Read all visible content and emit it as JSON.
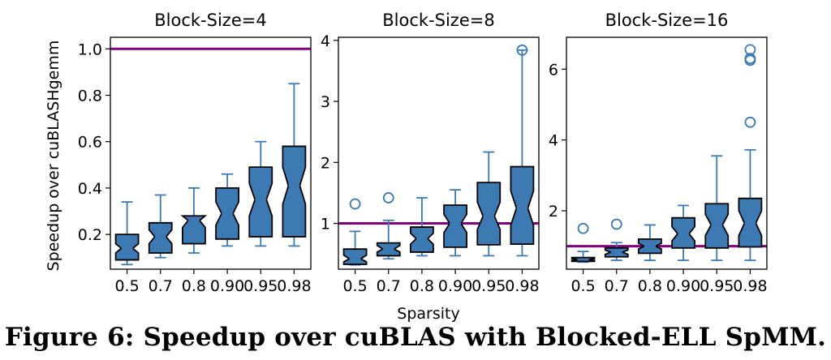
{
  "figure": {
    "caption": "Figure 6: Speedup over cuBLAS with Blocked-ELL SpMM.",
    "ylabel": "Speedup over cuBLASHgemm",
    "xlabel": "Sparsity"
  },
  "colors": {
    "box_fill": "#3d79b3",
    "whisker": "#3d79b3",
    "outlier": "#3d79b3",
    "reference_line": "#800080",
    "box_edge": "#000000"
  },
  "chart_data": [
    {
      "type": "boxplot",
      "notched": true,
      "title": "Block-Size=4",
      "ylim": [
        0.05,
        1.05
      ],
      "yticks": [
        0.2,
        0.4,
        0.6,
        0.8,
        1.0
      ],
      "ytick_labels": [
        "0.2",
        "0.4",
        "0.6",
        "0.8",
        "1.0"
      ],
      "categories": [
        "0.5",
        "0.7",
        "0.8",
        "0.90",
        "0.95",
        "0.98"
      ],
      "reference_line": 1.0,
      "boxes": [
        {
          "min": 0.07,
          "q1": 0.09,
          "median": 0.14,
          "q3": 0.2,
          "max": 0.34,
          "notch_low": 0.12,
          "notch_high": 0.16,
          "outliers": []
        },
        {
          "min": 0.1,
          "q1": 0.12,
          "median": 0.19,
          "q3": 0.25,
          "max": 0.37,
          "notch_low": 0.16,
          "notch_high": 0.22,
          "outliers": []
        },
        {
          "min": 0.12,
          "q1": 0.16,
          "median": 0.26,
          "q3": 0.28,
          "max": 0.4,
          "notch_low": 0.23,
          "notch_high": 0.285,
          "outliers": []
        },
        {
          "min": 0.15,
          "q1": 0.18,
          "median": 0.29,
          "q3": 0.4,
          "max": 0.46,
          "notch_low": 0.24,
          "notch_high": 0.34,
          "outliers": []
        },
        {
          "min": 0.15,
          "q1": 0.19,
          "median": 0.35,
          "q3": 0.49,
          "max": 0.6,
          "notch_low": 0.28,
          "notch_high": 0.42,
          "outliers": []
        },
        {
          "min": 0.15,
          "q1": 0.19,
          "median": 0.41,
          "q3": 0.58,
          "max": 0.85,
          "notch_low": 0.33,
          "notch_high": 0.49,
          "outliers": []
        }
      ]
    },
    {
      "type": "boxplot",
      "notched": true,
      "title": "Block-Size=8",
      "ylim": [
        0.25,
        4.05
      ],
      "yticks": [
        1,
        2,
        3,
        4
      ],
      "ytick_labels": [
        "1",
        "2",
        "3",
        "4"
      ],
      "categories": [
        "0.5",
        "0.7",
        "0.8",
        "0.90",
        "0.95",
        "0.98"
      ],
      "reference_line": 1.0,
      "boxes": [
        {
          "min": 0.32,
          "q1": 0.33,
          "median": 0.42,
          "q3": 0.58,
          "max": 0.87,
          "notch_low": 0.37,
          "notch_high": 0.48,
          "outliers": [
            1.32
          ]
        },
        {
          "min": 0.42,
          "q1": 0.47,
          "median": 0.58,
          "q3": 0.68,
          "max": 1.05,
          "notch_low": 0.53,
          "notch_high": 0.64,
          "outliers": [
            1.42
          ]
        },
        {
          "min": 0.47,
          "q1": 0.53,
          "median": 0.75,
          "q3": 0.94,
          "max": 1.42,
          "notch_low": 0.66,
          "notch_high": 0.84,
          "outliers": []
        },
        {
          "min": 0.47,
          "q1": 0.61,
          "median": 1.0,
          "q3": 1.3,
          "max": 1.55,
          "notch_low": 0.85,
          "notch_high": 1.15,
          "outliers": []
        },
        {
          "min": 0.47,
          "q1": 0.65,
          "median": 1.12,
          "q3": 1.67,
          "max": 2.17,
          "notch_low": 0.9,
          "notch_high": 1.35,
          "outliers": []
        },
        {
          "min": 0.47,
          "q1": 0.66,
          "median": 1.25,
          "q3": 1.93,
          "max": 3.84,
          "notch_low": 0.97,
          "notch_high": 1.53,
          "outliers": [
            3.84
          ]
        }
      ]
    },
    {
      "type": "boxplot",
      "notched": true,
      "title": "Block-Size=16",
      "ylim": [
        0.35,
        6.9
      ],
      "yticks": [
        2,
        4,
        6
      ],
      "ytick_labels": [
        "2",
        "4",
        "6"
      ],
      "categories": [
        "0.5",
        "0.7",
        "0.8",
        "0.90",
        "0.95",
        "0.98"
      ],
      "reference_line": 1.0,
      "boxes": [
        {
          "min": 0.55,
          "q1": 0.57,
          "median": 0.62,
          "q3": 0.68,
          "max": 0.85,
          "notch_low": 0.6,
          "notch_high": 0.65,
          "outliers": [
            1.5
          ]
        },
        {
          "min": 0.6,
          "q1": 0.7,
          "median": 0.83,
          "q3": 0.95,
          "max": 1.1,
          "notch_low": 0.77,
          "notch_high": 0.89,
          "outliers": [
            1.62
          ]
        },
        {
          "min": 0.6,
          "q1": 0.8,
          "median": 1.0,
          "q3": 1.2,
          "max": 1.6,
          "notch_low": 0.92,
          "notch_high": 1.08,
          "outliers": []
        },
        {
          "min": 0.6,
          "q1": 0.95,
          "median": 1.35,
          "q3": 1.8,
          "max": 2.15,
          "notch_low": 1.15,
          "notch_high": 1.55,
          "outliers": []
        },
        {
          "min": 0.6,
          "q1": 0.95,
          "median": 1.6,
          "q3": 2.2,
          "max": 3.55,
          "notch_low": 1.3,
          "notch_high": 1.9,
          "outliers": []
        },
        {
          "min": 0.6,
          "q1": 0.98,
          "median": 1.65,
          "q3": 2.35,
          "max": 3.72,
          "notch_low": 1.3,
          "notch_high": 2.0,
          "outliers": [
            4.5,
            6.25,
            6.3,
            6.55
          ]
        }
      ]
    }
  ]
}
